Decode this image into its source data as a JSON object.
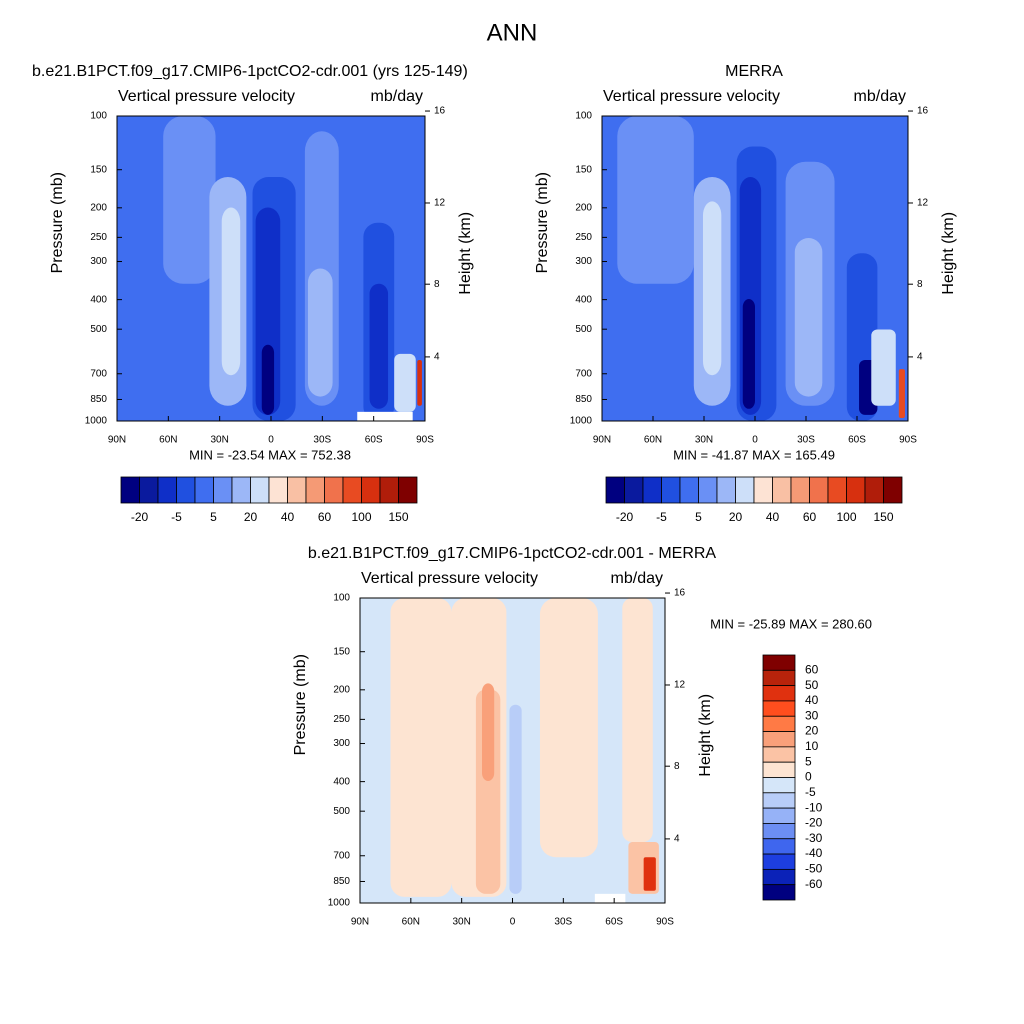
{
  "figure_title": "ANN",
  "chart_data": [
    {
      "type": "contour",
      "title": "b.e21.B1PCT.f09_g17.CMIP6-1pctCO2-cdr.001 (yrs 125-149)",
      "subtitle_left": "Vertical pressure velocity",
      "subtitle_right": "mb/day",
      "ylabel": "Pressure (mb)",
      "y2label": "Height (km)",
      "stats": "MIN = -23.54  MAX = 752.38",
      "xlim": [
        90,
        -90
      ],
      "xticks": [
        {
          "value": 90,
          "label": "90N"
        },
        {
          "value": 60,
          "label": "60N"
        },
        {
          "value": 30,
          "label": "30N"
        },
        0,
        {
          "value": -30,
          "label": "30S"
        },
        {
          "value": -60,
          "label": "60S"
        },
        {
          "value": -90,
          "label": "90S"
        }
      ],
      "ylim": [
        1000,
        100
      ],
      "log_y": true,
      "yticks": [
        100,
        150,
        200,
        250,
        300,
        400,
        500,
        700,
        850,
        1000
      ],
      "y2lim": [
        0.11,
        16.18
      ],
      "y2ticks": [
        4,
        8,
        12,
        16
      ],
      "colorbar": {
        "orientation": "horizontal",
        "labels": [
          -20,
          -5,
          5,
          20,
          40,
          60,
          100,
          150
        ],
        "colors": [
          "#000080",
          "#0a1a9e",
          "#0f2fc8",
          "#2050e0",
          "#3f6ef0",
          "#6a90f5",
          "#9cb7f7",
          "#cddff9",
          "#fde3d4",
          "#f9c0a4",
          "#f59a75",
          "#f0724c",
          "#e84b22",
          "#d7300f",
          "#b01d0a",
          "#7f0000"
        ]
      }
    },
    {
      "type": "contour",
      "title": "MERRA",
      "subtitle_left": "Vertical pressure velocity",
      "subtitle_right": "mb/day",
      "ylabel": "Pressure (mb)",
      "y2label": "Height (km)",
      "stats": "MIN = -41.87  MAX = 165.49",
      "xlim": [
        90,
        -90
      ],
      "xticks": [
        {
          "value": 90,
          "label": "90N"
        },
        {
          "value": 60,
          "label": "60N"
        },
        {
          "value": 30,
          "label": "30N"
        },
        0,
        {
          "value": -30,
          "label": "30S"
        },
        {
          "value": -60,
          "label": "60S"
        },
        {
          "value": -90,
          "label": "90S"
        }
      ],
      "ylim": [
        1000,
        100
      ],
      "log_y": true,
      "yticks": [
        100,
        150,
        200,
        250,
        300,
        400,
        500,
        700,
        850,
        1000
      ],
      "y2lim": [
        0.11,
        16.18
      ],
      "y2ticks": [
        4,
        8,
        12,
        16
      ],
      "colorbar": {
        "orientation": "horizontal",
        "labels": [
          -20,
          -5,
          5,
          20,
          40,
          60,
          100,
          150
        ],
        "colors": [
          "#000080",
          "#0a1a9e",
          "#0f2fc8",
          "#2050e0",
          "#3f6ef0",
          "#6a90f5",
          "#9cb7f7",
          "#cddff9",
          "#fde3d4",
          "#f9c0a4",
          "#f59a75",
          "#f0724c",
          "#e84b22",
          "#d7300f",
          "#b01d0a",
          "#7f0000"
        ]
      }
    },
    {
      "type": "contour",
      "title": "b.e21.B1PCT.f09_g17.CMIP6-1pctCO2-cdr.001 - MERRA",
      "subtitle_left": "Vertical pressure velocity",
      "subtitle_right": "mb/day",
      "ylabel": "Pressure (mb)",
      "y2label": "Height (km)",
      "stats": "MIN = -25.89  MAX = 280.60",
      "xlim": [
        90,
        -90
      ],
      "xticks": [
        {
          "value": 90,
          "label": "90N"
        },
        {
          "value": 60,
          "label": "60N"
        },
        {
          "value": 30,
          "label": "30N"
        },
        0,
        {
          "value": -30,
          "label": "30S"
        },
        {
          "value": -60,
          "label": "60S"
        },
        {
          "value": -90,
          "label": "90S"
        }
      ],
      "ylim": [
        1000,
        100
      ],
      "log_y": true,
      "yticks": [
        100,
        150,
        200,
        250,
        300,
        400,
        500,
        700,
        850,
        1000
      ],
      "y2lim": [
        0.11,
        16.18
      ],
      "y2ticks": [
        4,
        8,
        12,
        16
      ],
      "colorbar": {
        "orientation": "vertical",
        "labels": [
          60,
          50,
          40,
          30,
          20,
          10,
          5,
          0,
          -5,
          -10,
          -20,
          -30,
          -40,
          -50,
          -60
        ],
        "colors": [
          "#7f0000",
          "#b8230b",
          "#e0310f",
          "#ff4e1e",
          "#ff7a45",
          "#f9a07a",
          "#fbc3a5",
          "#fde4d2",
          "#d5e6f9",
          "#b8cdf8",
          "#96b2f7",
          "#6c8ef3",
          "#3f66ee",
          "#1d3ee0",
          "#0b22b8",
          "#000080"
        ]
      }
    }
  ]
}
